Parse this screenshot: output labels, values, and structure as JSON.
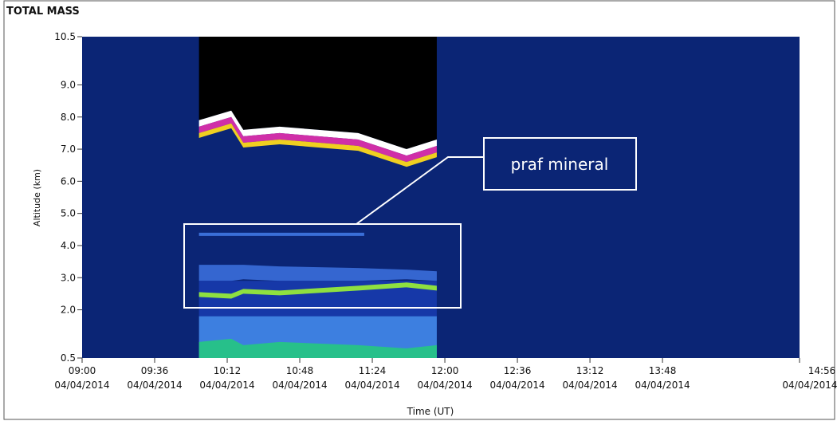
{
  "chart_data": {
    "type": "heatmap-bands",
    "title": "TOTAL MASS",
    "xlabel": "Time (UT)",
    "ylabel": "Altitude (km)",
    "annotation": "praf mineral",
    "date": "04/04/2014",
    "background": "#0b2575",
    "xlim": [
      540,
      896
    ],
    "ylim": [
      0.5,
      10.5
    ],
    "xticks": [
      {
        "value": 540,
        "label": "09:00"
      },
      {
        "value": 576,
        "label": "09:36"
      },
      {
        "value": 612,
        "label": "10:12"
      },
      {
        "value": 648,
        "label": "10:48"
      },
      {
        "value": 684,
        "label": "11:24"
      },
      {
        "value": 720,
        "label": "12:00"
      },
      {
        "value": 756,
        "label": "12:36"
      },
      {
        "value": 792,
        "label": "13:12"
      },
      {
        "value": 828,
        "label": "13:48"
      },
      {
        "value": 896,
        "label": "14:56"
      }
    ],
    "yticks": [
      0.5,
      {
        "value": 2,
        "label": "2.0"
      },
      {
        "value": 3,
        "label": "3.0"
      },
      {
        "value": 4,
        "label": "4.0"
      },
      {
        "value": 5,
        "label": "5.0"
      },
      {
        "value": 6,
        "label": "6.0"
      },
      {
        "value": 7,
        "label": "7.0"
      },
      {
        "value": 8,
        "label": "8.0"
      },
      {
        "value": 9,
        "label": "9.0"
      },
      10.5
    ],
    "series": [
      {
        "color": "#000000",
        "x": [
          598,
          614,
          620,
          638,
          677,
          701,
          716
        ],
        "upper": [
          10.5,
          10.5,
          10.5,
          10.5,
          10.5,
          10.5,
          10.5
        ],
        "lower": [
          7.9,
          8.2,
          7.6,
          7.7,
          7.5,
          7.0,
          7.3
        ]
      },
      {
        "color": "#ffffff",
        "x": [
          598,
          614,
          620,
          638,
          677,
          701,
          716
        ],
        "upper": [
          7.9,
          8.2,
          7.6,
          7.7,
          7.5,
          7.0,
          7.3
        ],
        "lower": [
          7.7,
          8.0,
          7.4,
          7.5,
          7.3,
          6.8,
          7.1
        ]
      },
      {
        "color": "#d02fa8",
        "x": [
          598,
          614,
          620,
          638,
          677,
          701,
          716
        ],
        "upper": [
          7.7,
          8.0,
          7.4,
          7.5,
          7.3,
          6.8,
          7.1
        ],
        "lower": [
          7.5,
          7.8,
          7.2,
          7.3,
          7.1,
          6.6,
          6.9
        ]
      },
      {
        "color": "#f0d020",
        "x": [
          598,
          614,
          620,
          638,
          677,
          701,
          716
        ],
        "upper": [
          7.5,
          7.8,
          7.2,
          7.3,
          7.1,
          6.6,
          6.9
        ],
        "lower": [
          7.35,
          7.65,
          7.05,
          7.15,
          6.95,
          6.45,
          6.75
        ]
      },
      {
        "color": "#3a6fd8",
        "x": [
          598,
          680
        ],
        "upper": [
          4.4,
          4.4
        ],
        "lower": [
          4.3,
          4.3
        ]
      },
      {
        "color": "#3566d0",
        "x": [
          598,
          614,
          620,
          638,
          677,
          701,
          716
        ],
        "upper": [
          3.4,
          3.4,
          3.4,
          3.35,
          3.3,
          3.25,
          3.2
        ],
        "lower": [
          2.9,
          2.9,
          2.95,
          2.9,
          2.9,
          2.95,
          2.9
        ]
      },
      {
        "color": "#1638a8",
        "x": [
          598,
          716
        ],
        "upper": [
          2.9,
          2.9
        ],
        "lower": [
          1.8,
          1.8
        ]
      },
      {
        "color": "#8ee040",
        "x": [
          598,
          614,
          620,
          638,
          677,
          701,
          716
        ],
        "upper": [
          2.55,
          2.5,
          2.65,
          2.6,
          2.75,
          2.85,
          2.75
        ],
        "lower": [
          2.4,
          2.35,
          2.5,
          2.45,
          2.6,
          2.7,
          2.6
        ]
      },
      {
        "color": "#3d7fe0",
        "x": [
          598,
          716
        ],
        "upper": [
          1.8,
          1.8
        ],
        "lower": [
          0.5,
          0.5
        ]
      },
      {
        "color": "#27c08a",
        "x": [
          598,
          614,
          620,
          638,
          677,
          701,
          716
        ],
        "upper": [
          1.0,
          1.1,
          0.9,
          1.0,
          0.9,
          0.8,
          0.9
        ],
        "lower": [
          0.5,
          0.5,
          0.5,
          0.5,
          0.5,
          0.5,
          0.5
        ]
      }
    ]
  }
}
